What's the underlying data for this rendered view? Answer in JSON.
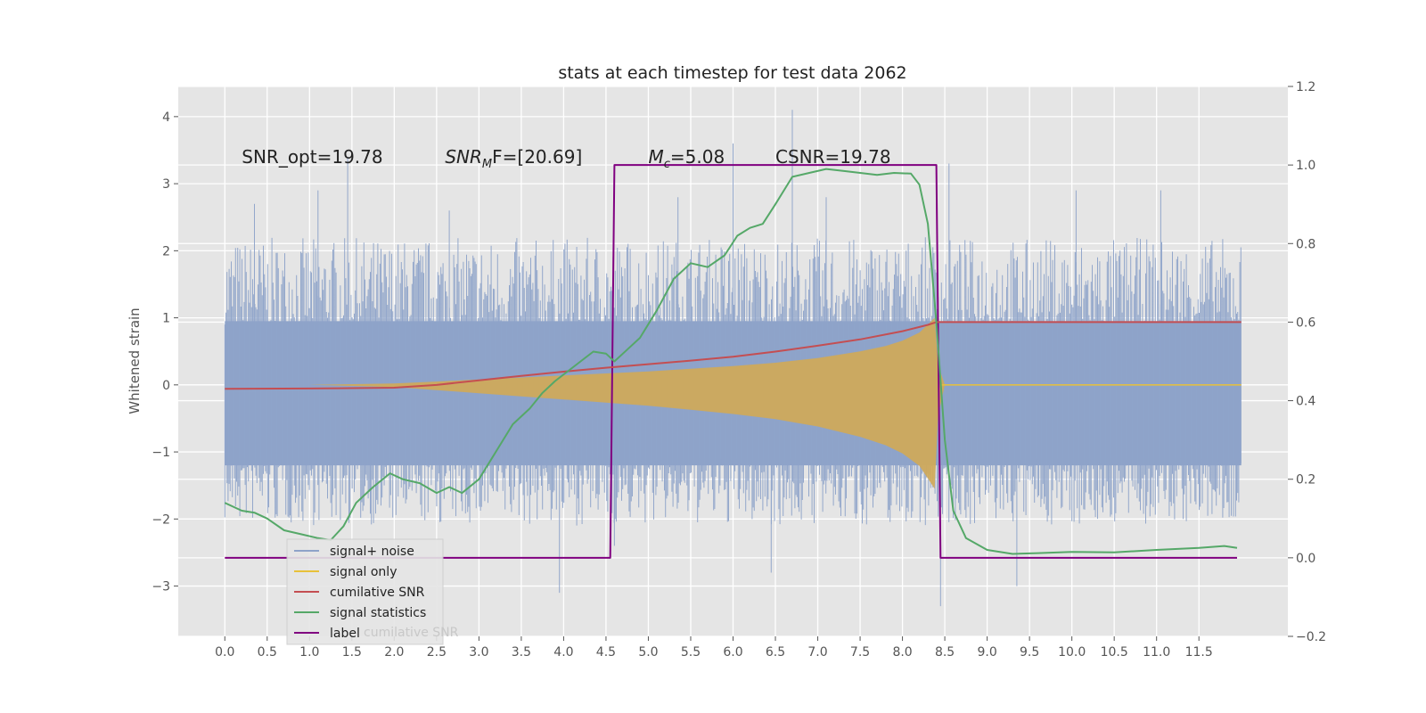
{
  "chart_data": {
    "type": "line",
    "title": "stats at each timestep for test data 2062",
    "ylabel": "Whitened strain",
    "xlabel": "",
    "xlim": [
      -0.55,
      12.55
    ],
    "ylim": [
      -3.75,
      4.45
    ],
    "y2lim": [
      -0.2,
      1.2
    ],
    "x_ticks": [
      "0.0",
      "0.5",
      "1.0",
      "1.5",
      "2.0",
      "2.5",
      "3.0",
      "3.5",
      "4.0",
      "4.5",
      "5.0",
      "5.5",
      "6.0",
      "6.5",
      "7.0",
      "7.5",
      "8.0",
      "8.5",
      "9.0",
      "9.5",
      "10.0",
      "10.5",
      "11.0",
      "11.5"
    ],
    "y_ticks": [
      "4",
      "3",
      "2",
      "1",
      "0",
      "−1",
      "−2",
      "−3"
    ],
    "y2_ticks": [
      "1.2",
      "1.0",
      "0.8",
      "0.6",
      "0.4",
      "0.2",
      "0.0",
      "−0.2"
    ],
    "grid": true,
    "legend_position": "lower-left",
    "annotations": [
      {
        "text": "SNR_opt=19.78",
        "x": 0.2,
        "y": 3.4
      },
      {
        "text": "SNR",
        "sub": "M",
        "tail": "F=[20.69]",
        "x": 2.6,
        "y": 3.4
      },
      {
        "text": "M",
        "sub": "c",
        "tail": "=5.08",
        "x": 5.0,
        "y": 3.4
      },
      {
        "text": "CSNR=19.78",
        "x": 6.5,
        "y": 3.4
      }
    ],
    "legend_ghost": "cumilative SNR",
    "series": [
      {
        "name": "signal+ noise",
        "axis": "left",
        "color": "#8ea3c9",
        "style": "noise-band",
        "x_range": [
          0.0,
          12.0
        ],
        "envelope_low": -2.1,
        "envelope_high": 2.2,
        "extremes": [
          [
            0.35,
            2.7
          ],
          [
            1.1,
            2.9
          ],
          [
            1.45,
            3.4
          ],
          [
            2.65,
            2.6
          ],
          [
            4.6,
            -2.4
          ],
          [
            5.35,
            2.8
          ],
          [
            6.0,
            3.6
          ],
          [
            6.7,
            4.1
          ],
          [
            7.1,
            2.8
          ],
          [
            8.45,
            -3.3
          ],
          [
            8.55,
            3.3
          ],
          [
            3.95,
            -3.1
          ],
          [
            6.45,
            -2.8
          ],
          [
            9.35,
            -3.0
          ],
          [
            10.05,
            2.9
          ],
          [
            11.05,
            2.9
          ]
        ]
      },
      {
        "name": "signal only",
        "axis": "left",
        "color": "#e8c13a",
        "style": "chirp",
        "x": [
          0.0,
          1.0,
          2.0,
          2.5,
          3.0,
          3.5,
          4.0,
          4.5,
          5.0,
          5.5,
          6.0,
          6.5,
          7.0,
          7.5,
          7.8,
          8.0,
          8.2,
          8.3,
          8.38,
          8.42,
          8.5,
          12.0
        ],
        "envelope": [
          0.0,
          0.0,
          0.02,
          0.05,
          0.08,
          0.11,
          0.14,
          0.17,
          0.2,
          0.24,
          0.28,
          0.33,
          0.4,
          0.5,
          0.58,
          0.66,
          0.78,
          0.9,
          1.0,
          0.3,
          0.0,
          0.0
        ]
      },
      {
        "name": "cumilative SNR",
        "axis": "right",
        "color": "#c44e52",
        "x": [
          0.0,
          1.0,
          2.0,
          2.5,
          3.0,
          3.5,
          4.0,
          4.5,
          5.0,
          5.5,
          6.0,
          6.5,
          7.0,
          7.5,
          8.0,
          8.3,
          8.4,
          8.45,
          12.0
        ],
        "values": [
          0.43,
          0.431,
          0.433,
          0.44,
          0.452,
          0.463,
          0.474,
          0.484,
          0.493,
          0.502,
          0.512,
          0.525,
          0.54,
          0.556,
          0.577,
          0.593,
          0.6,
          0.6,
          0.6
        ]
      },
      {
        "name": "signal statistics",
        "axis": "right",
        "color": "#55a868",
        "x": [
          0.0,
          0.1,
          0.2,
          0.35,
          0.5,
          0.7,
          0.9,
          1.1,
          1.25,
          1.4,
          1.55,
          1.75,
          1.95,
          2.1,
          2.3,
          2.5,
          2.65,
          2.8,
          3.0,
          3.2,
          3.4,
          3.6,
          3.75,
          3.9,
          4.05,
          4.2,
          4.35,
          4.5,
          4.6,
          4.75,
          4.9,
          5.1,
          5.3,
          5.5,
          5.7,
          5.9,
          6.05,
          6.2,
          6.35,
          6.5,
          6.7,
          6.9,
          7.1,
          7.3,
          7.5,
          7.7,
          7.9,
          8.1,
          8.2,
          8.3,
          8.4,
          8.5,
          8.6,
          8.75,
          9.0,
          9.3,
          9.6,
          10.0,
          10.5,
          11.0,
          11.5,
          11.8,
          11.95
        ],
        "values": [
          0.14,
          0.13,
          0.12,
          0.115,
          0.1,
          0.07,
          0.06,
          0.05,
          0.045,
          0.08,
          0.14,
          0.18,
          0.215,
          0.2,
          0.19,
          0.165,
          0.18,
          0.165,
          0.2,
          0.27,
          0.34,
          0.38,
          0.42,
          0.45,
          0.475,
          0.5,
          0.525,
          0.52,
          0.5,
          0.53,
          0.56,
          0.63,
          0.71,
          0.75,
          0.74,
          0.77,
          0.82,
          0.84,
          0.85,
          0.9,
          0.97,
          0.98,
          0.99,
          0.985,
          0.98,
          0.975,
          0.98,
          0.978,
          0.95,
          0.85,
          0.6,
          0.3,
          0.12,
          0.05,
          0.02,
          0.01,
          0.012,
          0.015,
          0.014,
          0.02,
          0.025,
          0.03,
          0.025
        ]
      },
      {
        "name": "label",
        "axis": "right",
        "color": "#800080",
        "x": [
          0.0,
          4.55,
          4.6,
          8.4,
          8.45,
          11.95
        ],
        "values": [
          0.0,
          0.0,
          1.0,
          1.0,
          0.0,
          0.0
        ]
      }
    ]
  }
}
